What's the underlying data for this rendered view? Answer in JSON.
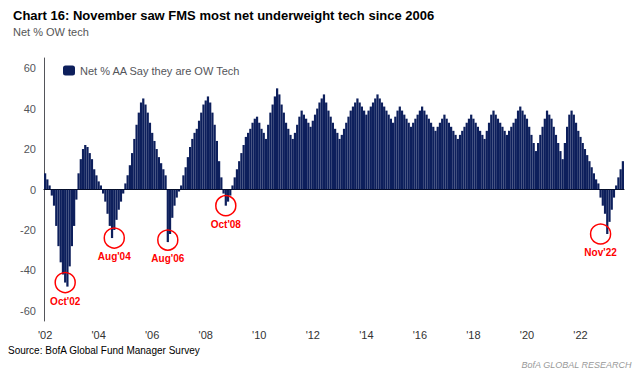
{
  "chart_data": {
    "type": "bar",
    "title": "Chart 16: November saw FMS most net underweight tech since 2006",
    "subtitle": "Net % OW tech",
    "source": "Source: BofA Global Fund Manager Survey",
    "watermark": "BofA GLOBAL RESEARCH",
    "categories": [
      "'02",
      null,
      null,
      null,
      null,
      null,
      null,
      null,
      null,
      null,
      null,
      null,
      null,
      null,
      null,
      null,
      null,
      null,
      null,
      null,
      null,
      null,
      null,
      null,
      "'04",
      null,
      null,
      null,
      null,
      null,
      null,
      null,
      null,
      null,
      null,
      null,
      null,
      null,
      null,
      null,
      null,
      null,
      null,
      null,
      null,
      null,
      null,
      null,
      "'06",
      null,
      null,
      null,
      null,
      null,
      null,
      null,
      null,
      null,
      null,
      null,
      null,
      null,
      null,
      null,
      null,
      null,
      null,
      null,
      null,
      null,
      null,
      null,
      "'08",
      null,
      null,
      null,
      null,
      null,
      null,
      null,
      null,
      null,
      null,
      null,
      null,
      null,
      null,
      null,
      null,
      null,
      null,
      null,
      null,
      null,
      null,
      null,
      "'10",
      null,
      null,
      null,
      null,
      null,
      null,
      null,
      null,
      null,
      null,
      null,
      null,
      null,
      null,
      null,
      null,
      null,
      null,
      null,
      null,
      null,
      null,
      null,
      "'12",
      null,
      null,
      null,
      null,
      null,
      null,
      null,
      null,
      null,
      null,
      null,
      null,
      null,
      null,
      null,
      null,
      null,
      null,
      null,
      null,
      null,
      null,
      null,
      "'14",
      null,
      null,
      null,
      null,
      null,
      null,
      null,
      null,
      null,
      null,
      null,
      null,
      null,
      null,
      null,
      null,
      null,
      null,
      null,
      null,
      null,
      null,
      null,
      "'16",
      null,
      null,
      null,
      null,
      null,
      null,
      null,
      null,
      null,
      null,
      null,
      null,
      null,
      null,
      null,
      null,
      null,
      null,
      null,
      null,
      null,
      null,
      null,
      "'18",
      null,
      null,
      null,
      null,
      null,
      null,
      null,
      null,
      null,
      null,
      null,
      null,
      null,
      null,
      null,
      null,
      null,
      null,
      null,
      null,
      null,
      null,
      null,
      "'20",
      null,
      null,
      null,
      null,
      null,
      null,
      null,
      null,
      null,
      null,
      null,
      null,
      null,
      null,
      null,
      null,
      null,
      null,
      null,
      null,
      null,
      null,
      null,
      "'22",
      null,
      null,
      null,
      null,
      null,
      null,
      null,
      null,
      null,
      null,
      null,
      null,
      null,
      null,
      null,
      null,
      null,
      null,
      null
    ],
    "series": [
      {
        "name": "Net % AA Say they are OW Tech",
        "color": "#0d1f5c",
        "values": [
          8,
          5,
          2,
          -3,
          -8,
          -18,
          -28,
          -36,
          -42,
          -46,
          -48,
          -38,
          -28,
          -18,
          -5,
          8,
          15,
          20,
          22,
          21,
          18,
          15,
          10,
          7,
          4,
          2,
          -2,
          -6,
          -12,
          -18,
          -24,
          -20,
          -15,
          -10,
          -6,
          -2,
          3,
          7,
          12,
          18,
          25,
          32,
          38,
          43,
          45,
          42,
          38,
          33,
          28,
          24,
          20,
          16,
          13,
          10,
          7,
          -26,
          -22,
          -14,
          -8,
          -4,
          -1,
          2,
          7,
          11,
          16,
          21,
          25,
          28,
          30,
          34,
          38,
          42,
          44,
          46,
          43,
          38,
          32,
          24,
          14,
          6,
          -2,
          -8,
          -6,
          -3,
          2,
          6,
          10,
          14,
          18,
          22,
          26,
          28,
          30,
          33,
          35,
          36,
          33,
          30,
          28,
          25,
          32,
          38,
          42,
          46,
          50,
          47,
          42,
          38,
          33,
          30,
          27,
          25,
          28,
          32,
          36,
          39,
          37,
          35,
          33,
          31,
          34,
          37,
          40,
          43,
          45,
          47,
          43,
          39,
          36,
          33,
          30,
          28,
          25,
          27,
          30,
          33,
          36,
          39,
          41,
          43,
          45,
          43,
          41,
          39,
          37,
          39,
          41,
          43,
          45,
          47,
          45,
          43,
          41,
          39,
          37,
          35,
          33,
          36,
          39,
          41,
          39,
          37,
          35,
          33,
          31,
          33,
          35,
          37,
          39,
          41,
          39,
          37,
          35,
          33,
          31,
          29,
          31,
          33,
          35,
          37,
          35,
          33,
          31,
          29,
          27,
          25,
          27,
          29,
          31,
          33,
          35,
          37,
          35,
          33,
          31,
          29,
          27,
          25,
          29,
          33,
          37,
          39,
          37,
          35,
          33,
          31,
          29,
          27,
          29,
          31,
          33,
          35,
          39,
          41,
          39,
          37,
          35,
          31,
          27,
          23,
          19,
          23,
          27,
          31,
          35,
          39,
          37,
          35,
          31,
          27,
          23,
          19,
          15,
          23,
          31,
          37,
          39,
          37,
          33,
          29,
          26,
          23,
          20,
          17,
          14,
          11,
          8,
          5,
          3,
          -4,
          -8,
          -12,
          -22,
          -16,
          -10,
          -4,
          2,
          6,
          10,
          14
        ]
      }
    ],
    "annotations": [
      {
        "label": "Oct'02",
        "x": 9,
        "y": -46
      },
      {
        "label": "Aug'04",
        "x": 31,
        "y": -24
      },
      {
        "label": "Aug'06",
        "x": 55,
        "y": -25
      },
      {
        "label": "Oct'08",
        "x": 81,
        "y": -8
      },
      {
        "label": "Nov'22",
        "x": 249,
        "y": -22
      }
    ],
    "ylim": [
      -65,
      65
    ],
    "yticks": [
      -60,
      -40,
      -20,
      0,
      20,
      40,
      60
    ],
    "grid": false,
    "legend": "upper left"
  }
}
